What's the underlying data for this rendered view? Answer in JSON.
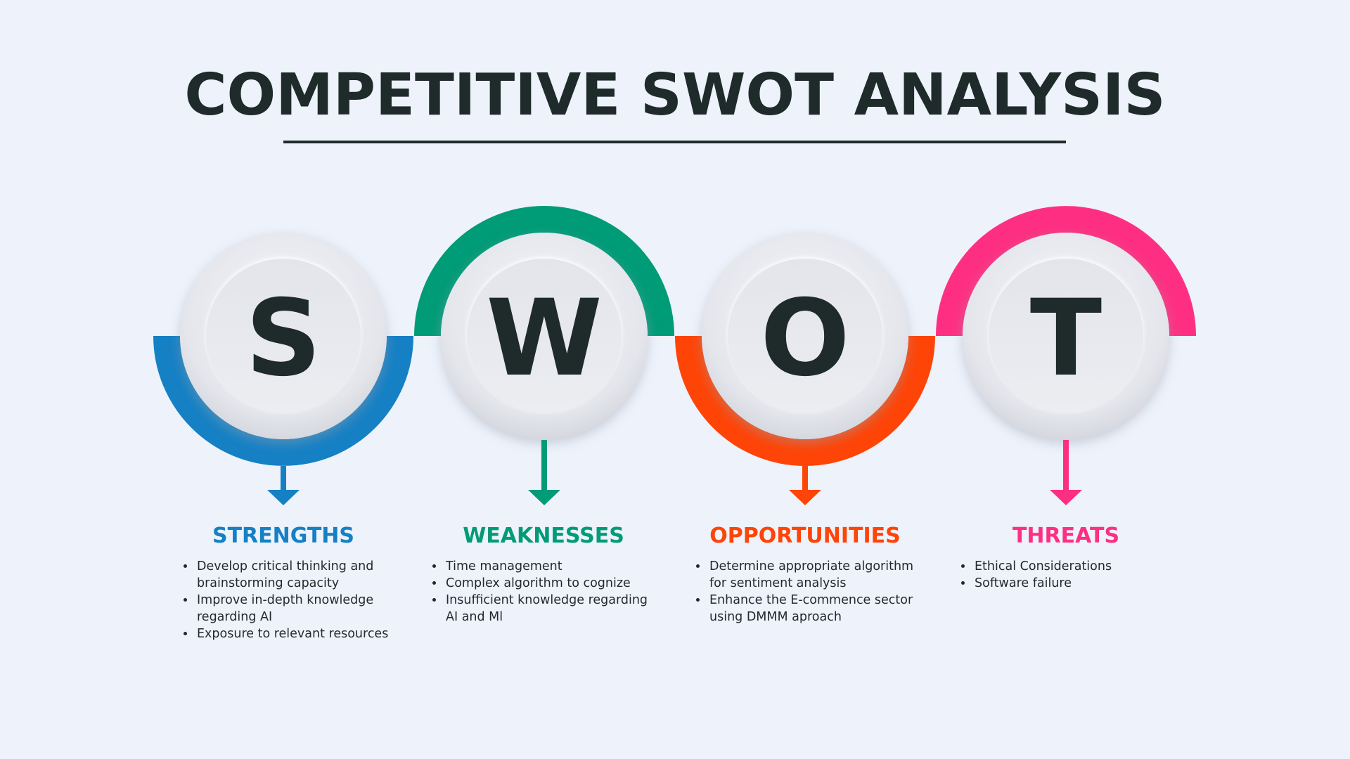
{
  "title": "COMPETITIVE SWOT ANALYSIS",
  "colors": {
    "strengths": "#1580c4",
    "weaknesses": "#009b77",
    "opportunities": "#fe4406",
    "threats": "#fe2f82",
    "text": "#1f2a2b",
    "background": "#edf2fb"
  },
  "letters": [
    "S",
    "W",
    "O",
    "T"
  ],
  "sections": [
    {
      "heading": "STRENGTHS",
      "items": [
        "Develop critical thinking  and brainstorming  capacity",
        "Improve in-depth knowledge regarding AI",
        "Exposure to relevant resources"
      ]
    },
    {
      "heading": "WEAKNESSES",
      "items": [
        "Time management",
        "Complex algorithm to cognize",
        "Insufficient knowledge regarding AI and Ml"
      ]
    },
    {
      "heading": "OPPORTUNITIES",
      "items": [
        "Determine appropriate algorithm for sentiment analysis",
        " Enhance the E-commence sector using DMMM aproach"
      ]
    },
    {
      "heading": "THREATS",
      "items": [
        "Ethical Considerations",
        "Software failure"
      ]
    }
  ]
}
